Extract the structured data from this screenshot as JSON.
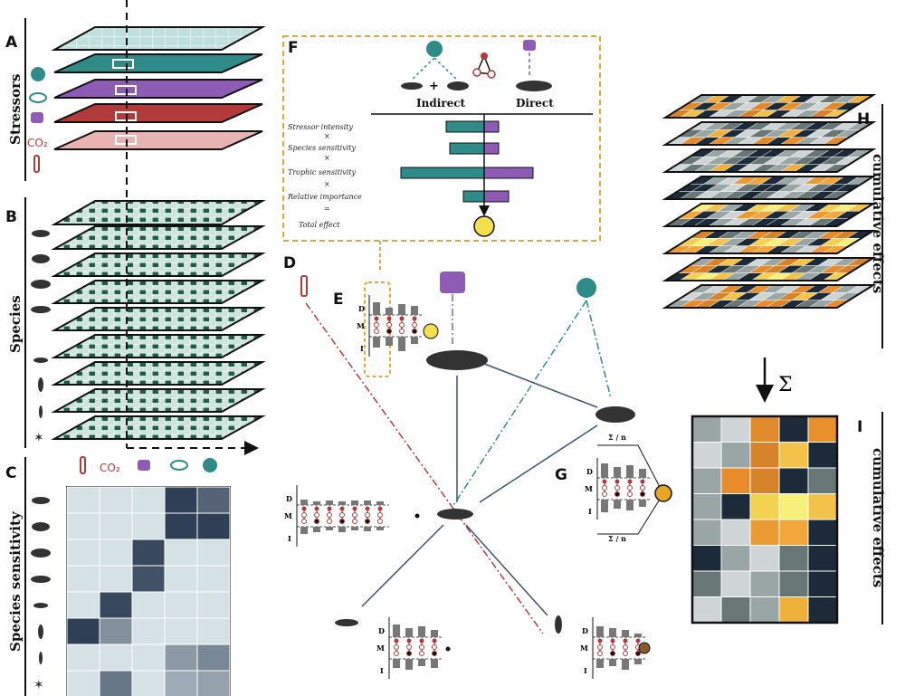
{
  "panels": {
    "a": "A",
    "b": "B",
    "c": "C",
    "d": "D",
    "e": "E",
    "f": "F",
    "g": "G",
    "h": "H",
    "i": "I"
  },
  "side_labels": {
    "stressors": "Stressors",
    "species": "Species",
    "species_sensitivity": "Species sensitivity",
    "cumulative_effects_h": "cumulative effects",
    "cumulative_effects_i": "cumulative effects"
  },
  "panel_f": {
    "indirect": "Indirect",
    "direct": "Direct",
    "plus": "+",
    "rows": [
      "Stressor intensity",
      "×",
      "Species sensitivity",
      "×",
      "Trophic sensitivity",
      "×",
      "Relative importance",
      "=",
      "Total effect"
    ]
  },
  "motif_axis": {
    "d": "D",
    "m": "M",
    "i": "I"
  },
  "sum_symbol": "Σ",
  "sum_n": "Σ / n",
  "stressor_icons": [
    "thermometer-icon",
    "co2-icon",
    "ship-icon",
    "trawl-icon",
    "net-icon"
  ],
  "species_icons": [
    "shark-icon",
    "cod-icon",
    "whale-icon",
    "humpback-icon",
    "shrimp-icon",
    "copepod-icon",
    "larva-icon",
    "starfish-icon"
  ],
  "colors": {
    "teal": "#2e8b87",
    "purple": "#8e5bb5",
    "red": "#b23a3a",
    "dark_green": "#1f5c4a",
    "navy": "#1c2e46",
    "orange": "#e7902b",
    "yellow": "#f4e04d",
    "dashed_orange": "#e0a83a",
    "light_grid": "#d6e1e6"
  },
  "sensitivity_matrix": [
    [
      0,
      0,
      0,
      0.9,
      0.7
    ],
    [
      0,
      0,
      0,
      0.9,
      0.9
    ],
    [
      0,
      0,
      0.85,
      0,
      0
    ],
    [
      0,
      0,
      0.8,
      0,
      0
    ],
    [
      0,
      0.85,
      0,
      0,
      0
    ],
    [
      0.9,
      0.45,
      0,
      0,
      0
    ],
    [
      0,
      0,
      0,
      0.4,
      0.5
    ],
    [
      0,
      0.6,
      0,
      0.3,
      0.35
    ]
  ],
  "cumulative_grid": [
    [
      "#9aa6a6",
      "#cfd5d6",
      "#e08a2c",
      "#1d2a3a",
      "#e8912c"
    ],
    [
      "#cfd5d6",
      "#9aa6a6",
      "#d6832a",
      "#f3c24a",
      "#1d2a3a"
    ],
    [
      "#9aa6a6",
      "#e88b2a",
      "#d6832a",
      "#1d2a3a",
      "#687676"
    ],
    [
      "#9aa6a6",
      "#1d2a3a",
      "#f4d251",
      "#f7f07a",
      "#f3c24a"
    ],
    [
      "#9aa6a6",
      "#cfd5d6",
      "#eb9a34",
      "#f2a63c",
      "#1d2a3a"
    ],
    [
      "#1d2a3a",
      "#9aa6a6",
      "#cfd5d6",
      "#687676",
      "#1d2a3a"
    ],
    [
      "#687676",
      "#cfd5d6",
      "#9aa6a6",
      "#687676",
      "#1d2a3a"
    ],
    [
      "#cfd5d6",
      "#687676",
      "#9aa6a6",
      "#f0b13c",
      "#1d2a3a"
    ]
  ]
}
